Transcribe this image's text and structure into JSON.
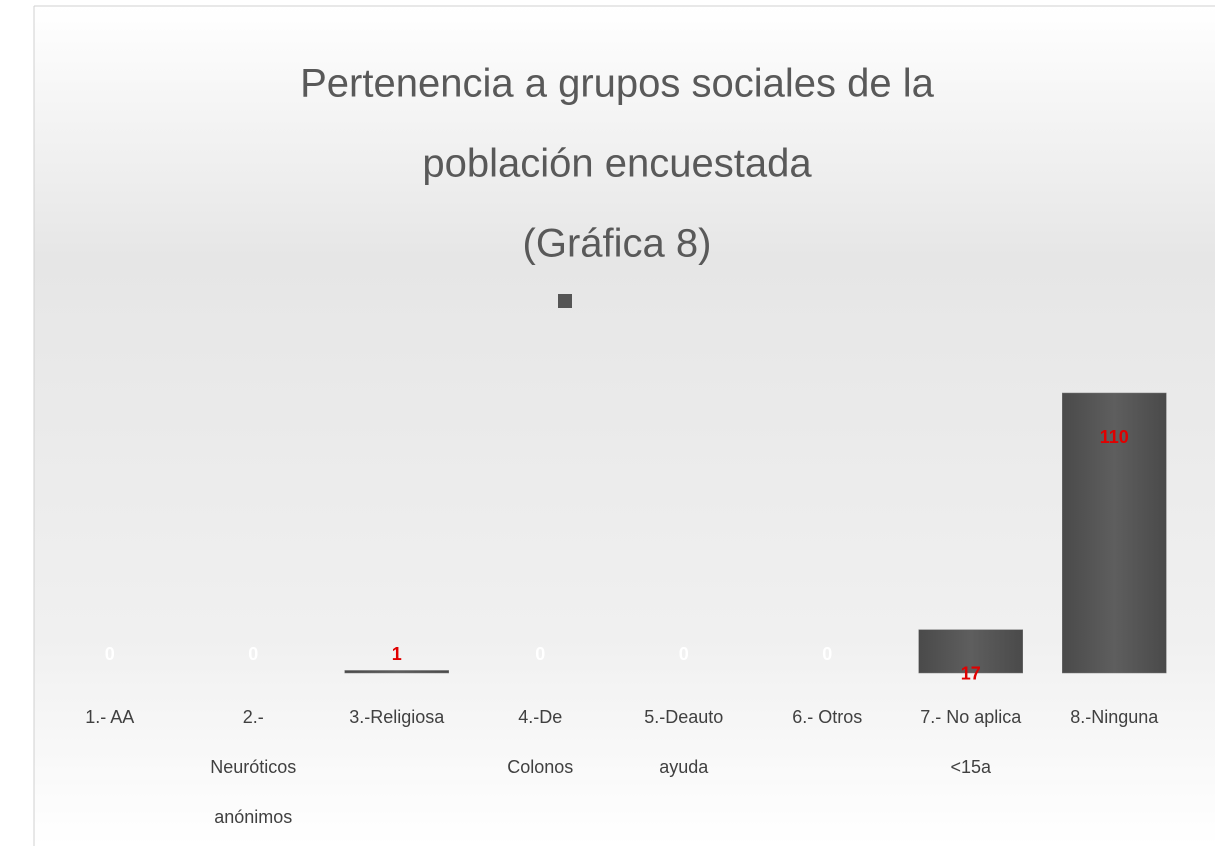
{
  "chart_data": {
    "type": "bar",
    "title": [
      "Pertenencia a grupos sociales de la",
      "población encuestada",
      "(Gráfica 8)"
    ],
    "categories": [
      [
        "1.- AA"
      ],
      [
        "2.-",
        "Neuróticos",
        "anónimos"
      ],
      [
        "3.-Religiosa"
      ],
      [
        "4.-De",
        "Colonos"
      ],
      [
        "5.-Deauto",
        "ayuda"
      ],
      [
        "6.- Otros"
      ],
      [
        "7.- No aplica",
        "<15a"
      ],
      [
        "8.-Ninguna"
      ]
    ],
    "values": [
      0,
      0,
      1,
      0,
      0,
      0,
      17,
      110
    ],
    "color": "#555555",
    "value_label_color": "#e00000"
  }
}
